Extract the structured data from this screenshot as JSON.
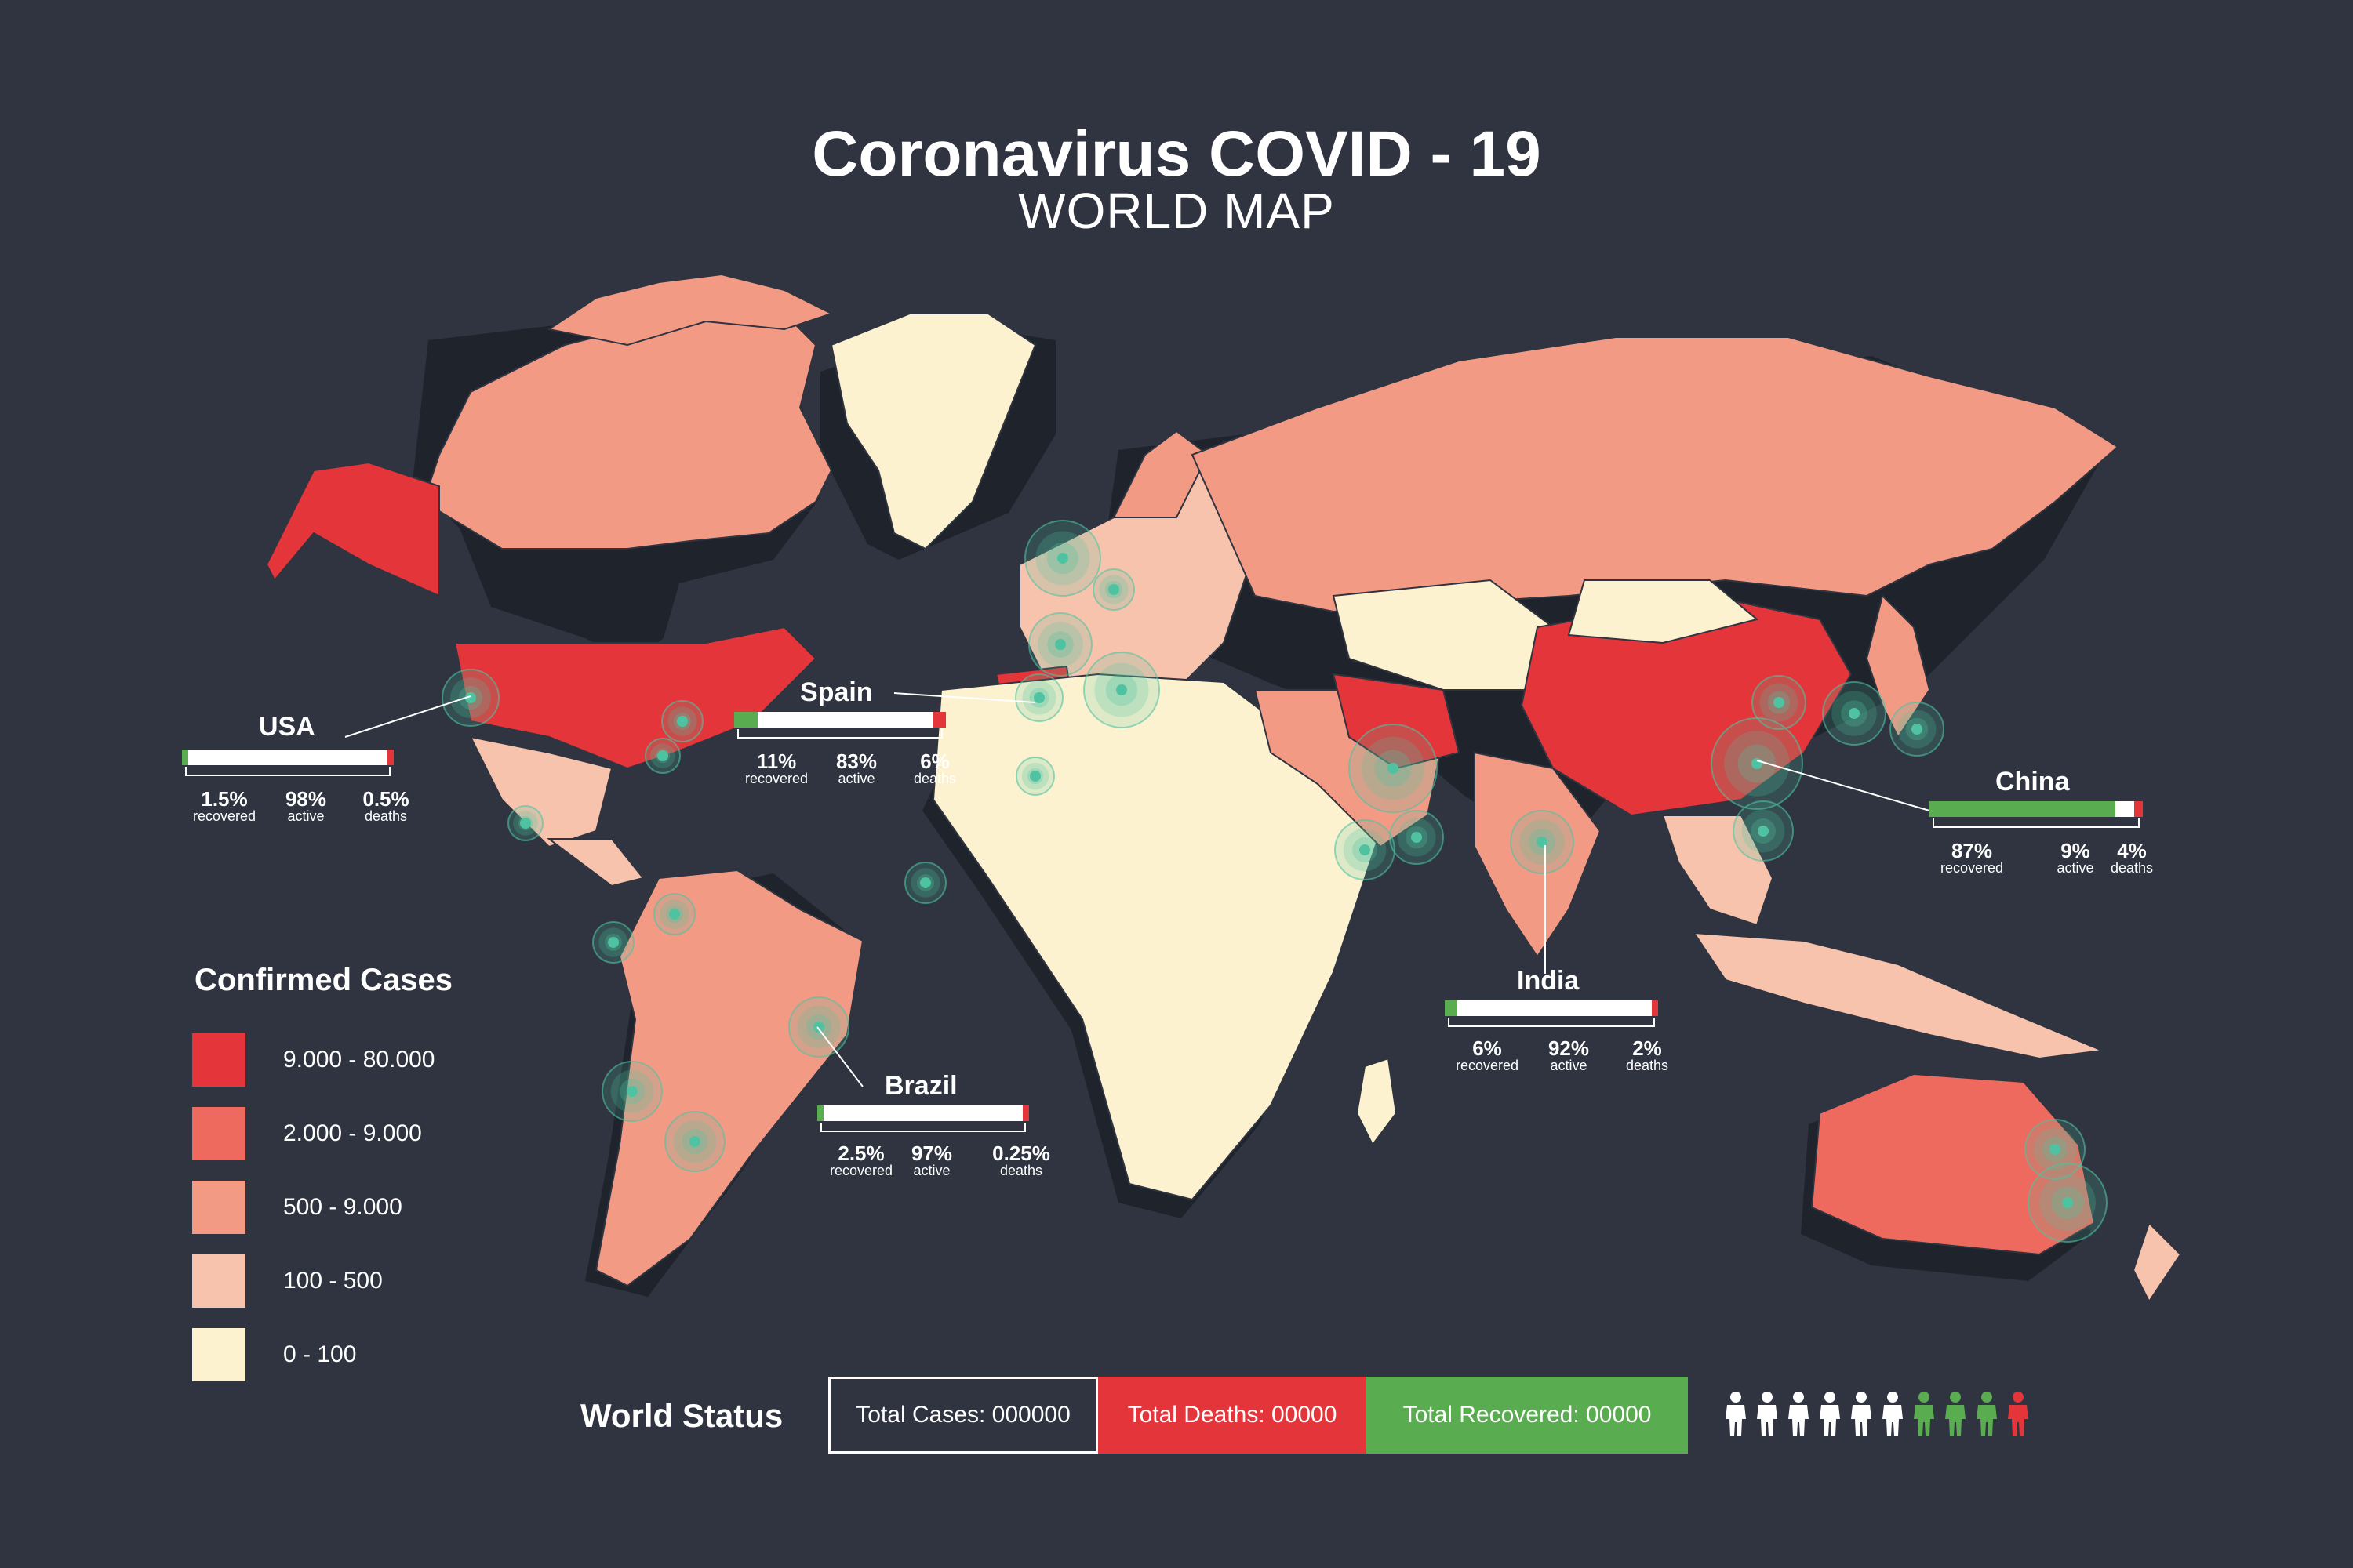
{
  "title": "Coronavirus COVID - 19",
  "subtitle": "WORLD MAP",
  "colors": {
    "background": "#2f3440",
    "tier1": "#e3353a",
    "tier2": "#ef6a5e",
    "tier3": "#f39a85",
    "tier4": "#f8c3ad",
    "tier5": "#fdf2d0",
    "recovered": "#59ac4f",
    "deaths": "#e3353a",
    "hotspot": "#4fc3a1"
  },
  "legend": {
    "title": "Confirmed Cases",
    "items": [
      {
        "label": "9.000 - 80.000",
        "color": "#e3353a"
      },
      {
        "label": "2.000 - 9.000",
        "color": "#ef6a5e"
      },
      {
        "label": "500 - 9.000",
        "color": "#f39a85"
      },
      {
        "label": "100 - 500",
        "color": "#f8c3ad"
      },
      {
        "label": "0 - 100",
        "color": "#fdf2d0"
      }
    ]
  },
  "countries": {
    "usa": {
      "name": "USA",
      "recovered_pct": 1.5,
      "active_pct": 98,
      "deaths_pct": 0.5,
      "recovered": "1.5%",
      "active": "98%",
      "deaths": "0.5%"
    },
    "spain": {
      "name": "Spain",
      "recovered_pct": 11,
      "active_pct": 83,
      "deaths_pct": 6,
      "recovered": "11%",
      "active": "83%",
      "deaths": "6%"
    },
    "china": {
      "name": "China",
      "recovered_pct": 87,
      "active_pct": 9,
      "deaths_pct": 4,
      "recovered": "87%",
      "active": "9%",
      "deaths": "4%"
    },
    "india": {
      "name": "India",
      "recovered_pct": 6,
      "active_pct": 92,
      "deaths_pct": 2,
      "recovered": "6%",
      "active": "92%",
      "deaths": "2%"
    },
    "brazil": {
      "name": "Brazil",
      "recovered_pct": 2.5,
      "active_pct": 97,
      "deaths_pct": 0.25,
      "recovered": "2.5%",
      "active": "97%",
      "deaths": "0.25%"
    }
  },
  "stat_labels": {
    "recovered": "recovered",
    "active": "active",
    "deaths": "deaths"
  },
  "world_status": {
    "label": "World Status",
    "total_cases": "Total Cases: 000000",
    "total_deaths": "Total Deaths: 00000",
    "total_recovered": "Total Recovered: 00000"
  },
  "people_icons": [
    "white",
    "white",
    "white",
    "white",
    "white",
    "white",
    "green",
    "green",
    "green",
    "red"
  ]
}
